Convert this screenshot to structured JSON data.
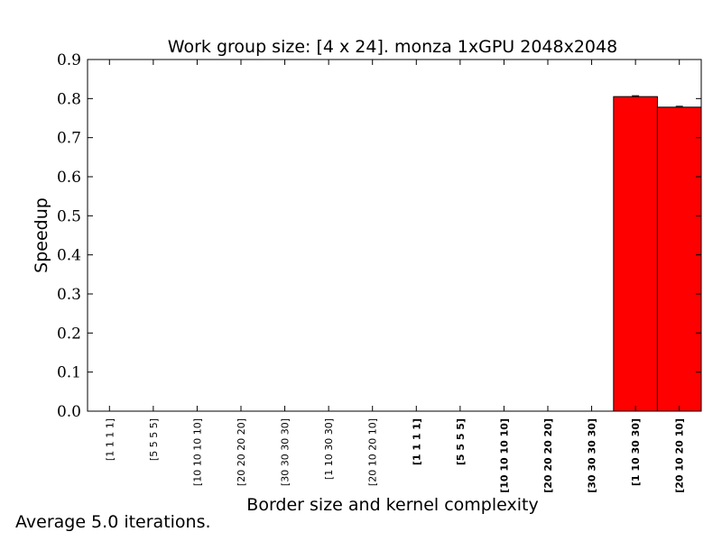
{
  "chart_data": {
    "type": "bar",
    "title": "Work group size: [4 x 24]. monza 1xGPU 2048x2048",
    "xlabel": "Border size and kernel complexity",
    "ylabel": "Speedup",
    "ylim": [
      0,
      0.9
    ],
    "yticks": [
      "0.0",
      "0.1",
      "0.2",
      "0.3",
      "0.4",
      "0.5",
      "0.6",
      "0.7",
      "0.8",
      "0.9"
    ],
    "categories": [
      "[1 1 1 1]",
      "[5 5 5 5]",
      "[10 10 10 10]",
      "[20 20 20 20]",
      "[30 30 30 30]",
      "[1 10 30 30]",
      "[20 10 20 10]",
      "[1 1 1 1]",
      "[5 5 5 5]",
      "[10 10 10 10]",
      "[20 20 20 20]",
      "[30 30 30 30]",
      "[1 10 30 30]",
      "[20 10 20 10]"
    ],
    "bold_categories": [
      false,
      false,
      false,
      false,
      false,
      false,
      false,
      true,
      true,
      true,
      true,
      true,
      true,
      true
    ],
    "values": [
      0,
      0,
      0,
      0,
      0,
      0,
      0,
      0,
      0,
      0,
      0,
      0,
      0.805,
      0.778
    ],
    "bar_color": "#ff0000",
    "grid": false,
    "legend": "none"
  },
  "note": "Average 5.0 iterations."
}
